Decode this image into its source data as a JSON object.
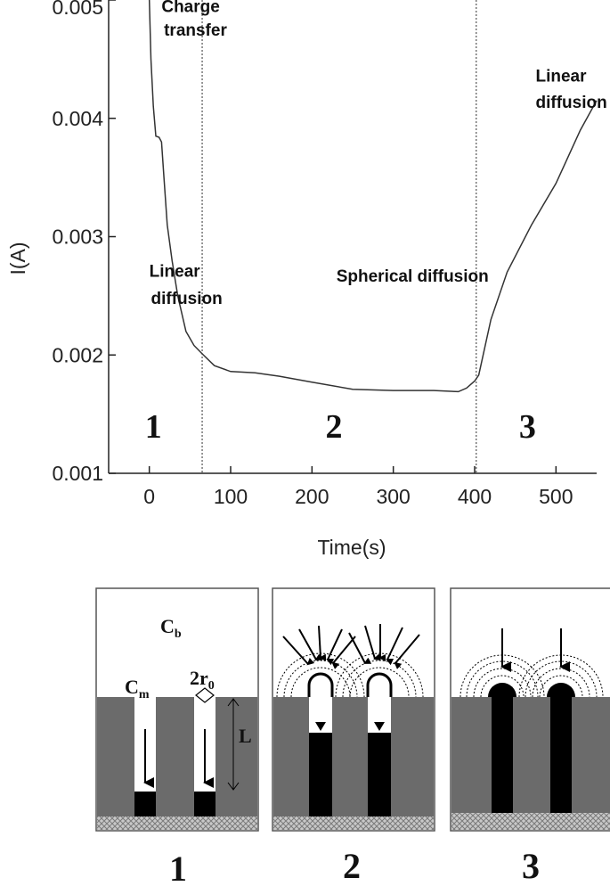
{
  "chart_data": {
    "type": "line",
    "xlabel": "Time(s)",
    "ylabel": "I(A)",
    "xlim": [
      -50,
      550
    ],
    "ylim": [
      0.001,
      0.005
    ],
    "xticks": [
      0,
      100,
      200,
      300,
      400,
      500
    ],
    "xtick_labels": [
      "0",
      "100",
      "200",
      "300",
      "400",
      "500"
    ],
    "yticks": [
      0.001,
      0.002,
      0.003,
      0.004,
      0.005
    ],
    "ytick_labels": [
      "0.001",
      "0.002",
      "0.003",
      "0.004",
      "0.005"
    ],
    "grid": false,
    "vlines": [
      65,
      402
    ],
    "series": [
      {
        "x": [
          0,
          2,
          5,
          8,
          12,
          15,
          18,
          22,
          28,
          35,
          45,
          55,
          65,
          80,
          100,
          130,
          160,
          200,
          250,
          300,
          350,
          380,
          390,
          400,
          405,
          420,
          440,
          470,
          500,
          530,
          550
        ],
        "y": [
          0.005,
          0.0045,
          0.0041,
          0.00385,
          0.00384,
          0.0038,
          0.0035,
          0.0031,
          0.0028,
          0.0025,
          0.0022,
          0.00208,
          0.00201,
          0.00191,
          0.00186,
          0.00185,
          0.00182,
          0.00177,
          0.00171,
          0.0017,
          0.0017,
          0.00169,
          0.00172,
          0.00178,
          0.00183,
          0.0023,
          0.0027,
          0.0031,
          0.00345,
          0.0039,
          0.00415
        ]
      }
    ],
    "annotations": [
      {
        "text": "Charge",
        "x": 15,
        "y": 0.0049
      },
      {
        "text": "transfer",
        "x": 18,
        "y": 0.0047
      },
      {
        "text": "Linear",
        "x": 0,
        "y": 0.00266
      },
      {
        "text": "diffusion",
        "x": 2,
        "y": 0.00243
      },
      {
        "text": "Spherical diffusion",
        "x": 230,
        "y": 0.00262
      },
      {
        "text": "Linear",
        "x": 475,
        "y": 0.00431
      },
      {
        "text": "diffusion",
        "x": 475,
        "y": 0.00409
      }
    ],
    "region_numbers": [
      {
        "text": "1",
        "x": 5,
        "y": 0.0013
      },
      {
        "text": "2",
        "x": 227,
        "y": 0.0013
      },
      {
        "text": "3",
        "x": 465,
        "y": 0.0013
      }
    ]
  },
  "schematic": {
    "panel_labels": [
      "1",
      "2",
      "3"
    ],
    "symbols": {
      "cb_main": "C",
      "cb_sub": "b",
      "cm_main": "C",
      "cm_sub": "m",
      "r_pre": "2r",
      "r_sub": "0",
      "length": "L"
    },
    "colors": {
      "membrane": "#6b6b6b",
      "metal": "#000000",
      "substrate": "#b0b0b0",
      "background": "#ffffff"
    }
  }
}
